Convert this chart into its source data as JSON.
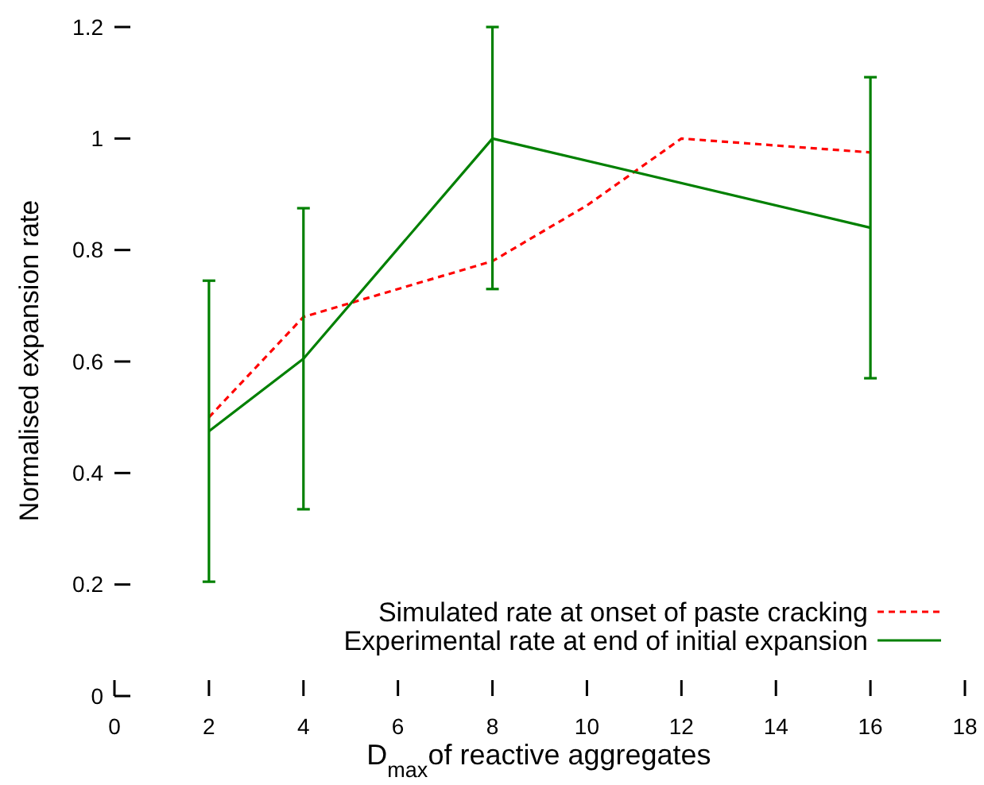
{
  "chart_data": {
    "type": "line",
    "xlabel": "D$_{max}$of reactive aggregates",
    "ylabel": "Normalised expansion rate",
    "xlim": [
      0,
      18
    ],
    "xticks": [
      0,
      2,
      4,
      6,
      8,
      10,
      12,
      14,
      16,
      18
    ],
    "ylim": [
      0,
      1.2
    ],
    "yticks": [
      0,
      0.2,
      0.4,
      0.6,
      0.8,
      1,
      1.2
    ],
    "legend": "bottom right",
    "grid": false,
    "series": [
      {
        "name": "Simulated rate at onset of paste cracking",
        "color": "#ff0000",
        "line_style": "dashed",
        "x": [
          2,
          4,
          8,
          10,
          12,
          16
        ],
        "values": [
          0.5,
          0.68,
          0.78,
          0.88,
          1.0,
          0.975
        ]
      },
      {
        "name": "Experimental rate at end of initial expansion",
        "color": "#008000",
        "line_style": "solid",
        "x": [
          2,
          4,
          8,
          16
        ],
        "values": [
          0.475,
          0.605,
          1.0,
          0.84
        ],
        "errors": [
          [
            0.205,
            0.745
          ],
          [
            0.335,
            0.875
          ],
          [
            0.73,
            1.2
          ],
          [
            0.57,
            1.11
          ]
        ]
      }
    ]
  }
}
